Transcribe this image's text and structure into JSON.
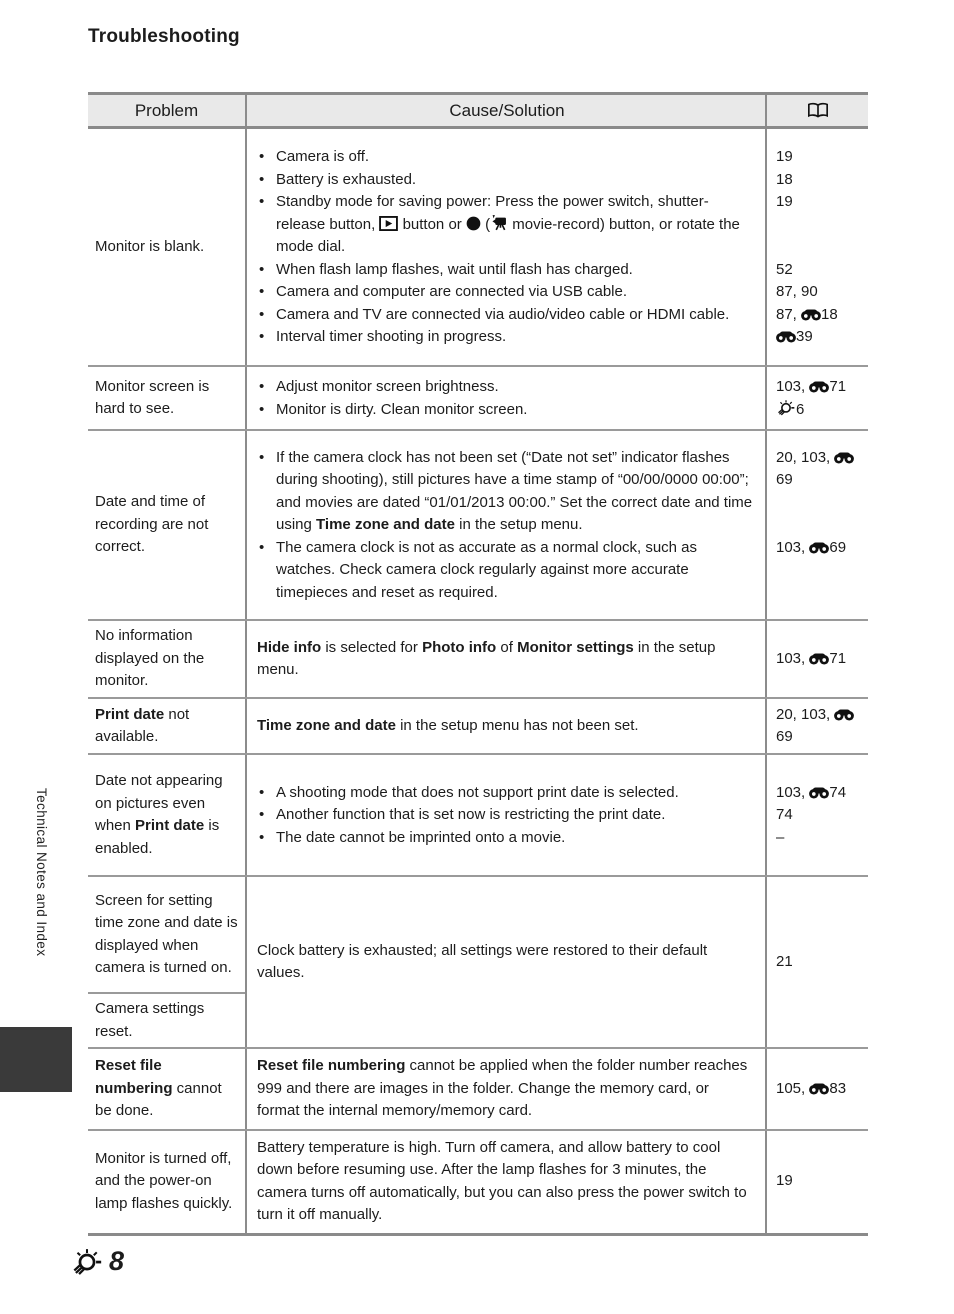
{
  "page": {
    "title": "Troubleshooting"
  },
  "sidebar": {
    "label": "Technical Notes and Index"
  },
  "footer": {
    "icon": "torch-icon",
    "page_number": "8"
  },
  "colors": {
    "border_gray": "#8c8c8c",
    "header_background": "#e9e9e9",
    "sidebar_tab": "#3a3a3a",
    "text": "#1c1c1c"
  },
  "table": {
    "headers": {
      "problem": "Problem",
      "cause": "Cause/Solution",
      "ref_icon": "book-icon"
    },
    "rows": [
      {
        "bulleted": true,
        "problem": "Monitor is blank.",
        "items": [
          {
            "text": "Camera is off.",
            "ref": "19"
          },
          {
            "text": "Battery is exhausted.",
            "ref": "18"
          },
          {
            "text": "Standby mode for saving power: Press the power switch, shutter-release button, [PLAY] button or [DOT] ([MOVIE] movie-record) button, or rotate the mode dial.",
            "ref": "19"
          },
          {
            "text": "When flash lamp flashes, wait until flash has charged.",
            "ref": "52"
          },
          {
            "text": "Camera and computer are connected via USB cable.",
            "ref": "87, 90"
          },
          {
            "text": "Camera and TV are connected via audio/video cable or HDMI cable.",
            "ref": "87, [E]18"
          },
          {
            "text": "Interval timer shooting in progress.",
            "ref": "[E]39"
          }
        ]
      },
      {
        "bulleted": true,
        "problem": "Monitor screen is hard to see.",
        "items": [
          {
            "text": "Adjust monitor screen brightness.",
            "ref": "103, [E]71"
          },
          {
            "text": "Monitor is dirty. Clean monitor screen.",
            "ref": "[F]6"
          }
        ]
      },
      {
        "bulleted": true,
        "problem": "Date and time of recording are not correct.",
        "items": [
          {
            "text": "If the camera clock has not been set (“Date not set” indicator flashes during shooting), still pictures have a time stamp of “00/00/0000 00:00”; and movies are dated “01/01/2013 00:00.” Set the correct date and time using [B]Time zone and date[/B] in the setup menu.",
            "ref": "20, 103, [E]69"
          },
          {
            "text": "The camera clock is not as accurate as a normal clock, such as watches. Check camera clock regularly against more accurate timepieces and reset as required.",
            "ref": "103, [E]69"
          }
        ]
      },
      {
        "bulleted": false,
        "problem": "No information displayed on the monitor.",
        "items": [
          {
            "text": "[B]Hide info[/B] is selected for [B]Photo info[/B] of [B]Monitor settings[/B] in the setup menu.",
            "ref": "103, [E]71"
          }
        ]
      },
      {
        "bulleted": false,
        "problem": "[B]Print date[/B] not available.",
        "items": [
          {
            "text": "[B]Time zone and date[/B] in the setup menu has not been set.",
            "ref": "20, 103, [E]69"
          }
        ]
      },
      {
        "bulleted": true,
        "problem": "Date not appearing on pictures even when [B]Print date[/B] is enabled.",
        "items": [
          {
            "text": "A shooting mode that does not support print date is selected.",
            "ref": "103, [E]74"
          },
          {
            "text": "Another function that is set now is restricting the print date.",
            "ref": "74"
          },
          {
            "text": "The date cannot be imprinted onto a movie.",
            "ref": "–"
          }
        ]
      },
      {
        "bulleted": false,
        "problems": [
          "Screen for setting time zone and date is displayed when camera is turned on.",
          "Camera settings reset."
        ],
        "items": [
          {
            "text": "Clock battery is exhausted; all settings were restored to their default values.",
            "ref": "21"
          }
        ]
      },
      {
        "bulleted": false,
        "problem": "[B]Reset file numbering[/B] cannot be done.",
        "items": [
          {
            "text": "[B]Reset file numbering[/B] cannot be applied when the folder number reaches 999 and there are images in the folder. Change the memory card, or format the internal memory/memory card.",
            "ref": "105, [E]83"
          }
        ]
      },
      {
        "bulleted": false,
        "problem": "Monitor is turned off, and the power-on lamp flashes quickly.",
        "items": [
          {
            "text": "Battery temperature is high. Turn off camera, and allow battery to cool down before resuming use. After the lamp flashes for 3 minutes, the camera turns off automatically, but you can also press the power switch to turn it off manually.",
            "ref": "19"
          }
        ]
      }
    ]
  }
}
